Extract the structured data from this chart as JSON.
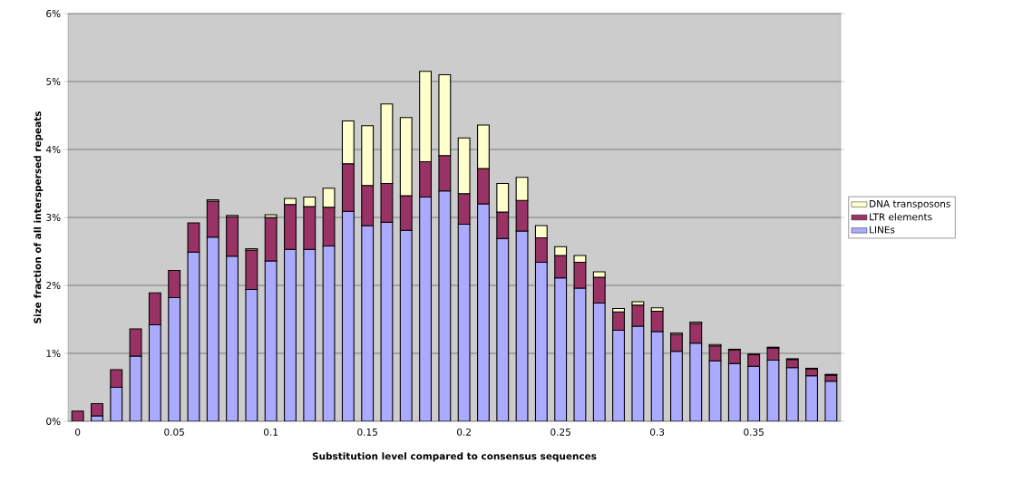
{
  "chart_data": {
    "type": "bar",
    "stacked": true,
    "xlabel": "Substitution level compared to consensus sequences",
    "ylabel": "Size fraction of all interspersed repeats",
    "categories": [
      "0",
      null,
      null,
      null,
      null,
      "0.05",
      null,
      null,
      null,
      null,
      "0.1",
      null,
      null,
      null,
      null,
      "0.15",
      null,
      null,
      null,
      null,
      "0.2",
      null,
      null,
      null,
      null,
      "0.25",
      null,
      null,
      null,
      null,
      "0.3",
      null,
      null,
      null,
      null,
      "0.35",
      null,
      null,
      null,
      null
    ],
    "series": [
      {
        "name": "LINEs",
        "color": "#aaaaff",
        "values": [
          null,
          0.08,
          0.5,
          0.96,
          1.42,
          1.82,
          2.49,
          2.71,
          2.43,
          1.94,
          2.36,
          2.53,
          2.53,
          2.58,
          3.09,
          2.88,
          2.93,
          2.81,
          3.3,
          3.39,
          2.9,
          3.2,
          2.69,
          2.8,
          2.34,
          2.11,
          1.96,
          1.74,
          1.34,
          1.4,
          1.32,
          1.03,
          1.15,
          0.89,
          0.85,
          0.81,
          0.9,
          0.79,
          0.67,
          0.59
        ]
      },
      {
        "name": "LTR elements",
        "color": "#993366",
        "values": [
          0.15,
          0.18,
          0.26,
          0.4,
          0.47,
          0.4,
          0.43,
          0.53,
          0.58,
          0.58,
          0.64,
          0.66,
          0.63,
          0.57,
          0.7,
          0.59,
          0.57,
          0.51,
          0.52,
          0.52,
          0.45,
          0.52,
          0.39,
          0.45,
          0.36,
          0.33,
          0.38,
          0.38,
          0.27,
          0.31,
          0.3,
          0.25,
          0.29,
          0.22,
          0.2,
          0.17,
          0.18,
          0.12,
          0.1,
          0.09
        ]
      },
      {
        "name": "DNA transposons",
        "color": "#ffffcc",
        "values": [
          null,
          null,
          null,
          null,
          null,
          null,
          null,
          0.02,
          0.02,
          0.02,
          0.04,
          0.09,
          0.14,
          0.28,
          0.63,
          0.88,
          1.17,
          1.15,
          1.33,
          1.19,
          0.82,
          0.64,
          0.42,
          0.34,
          0.18,
          0.13,
          0.1,
          0.08,
          0.05,
          0.05,
          0.05,
          0.02,
          0.02,
          0.02,
          0.01,
          0.01,
          0.01,
          0.01,
          0.01,
          0.01
        ]
      }
    ],
    "ylim": [
      0,
      6
    ],
    "yticks": [
      {
        "value": 0,
        "label": "0%"
      },
      {
        "value": 1,
        "label": "1%"
      },
      {
        "value": 2,
        "label": "2%"
      },
      {
        "value": 3,
        "label": "3%"
      },
      {
        "value": 4,
        "label": "4%"
      },
      {
        "value": 5,
        "label": "5%"
      },
      {
        "value": 6,
        "label": "6%"
      }
    ],
    "grid": "y",
    "legend": "right"
  }
}
